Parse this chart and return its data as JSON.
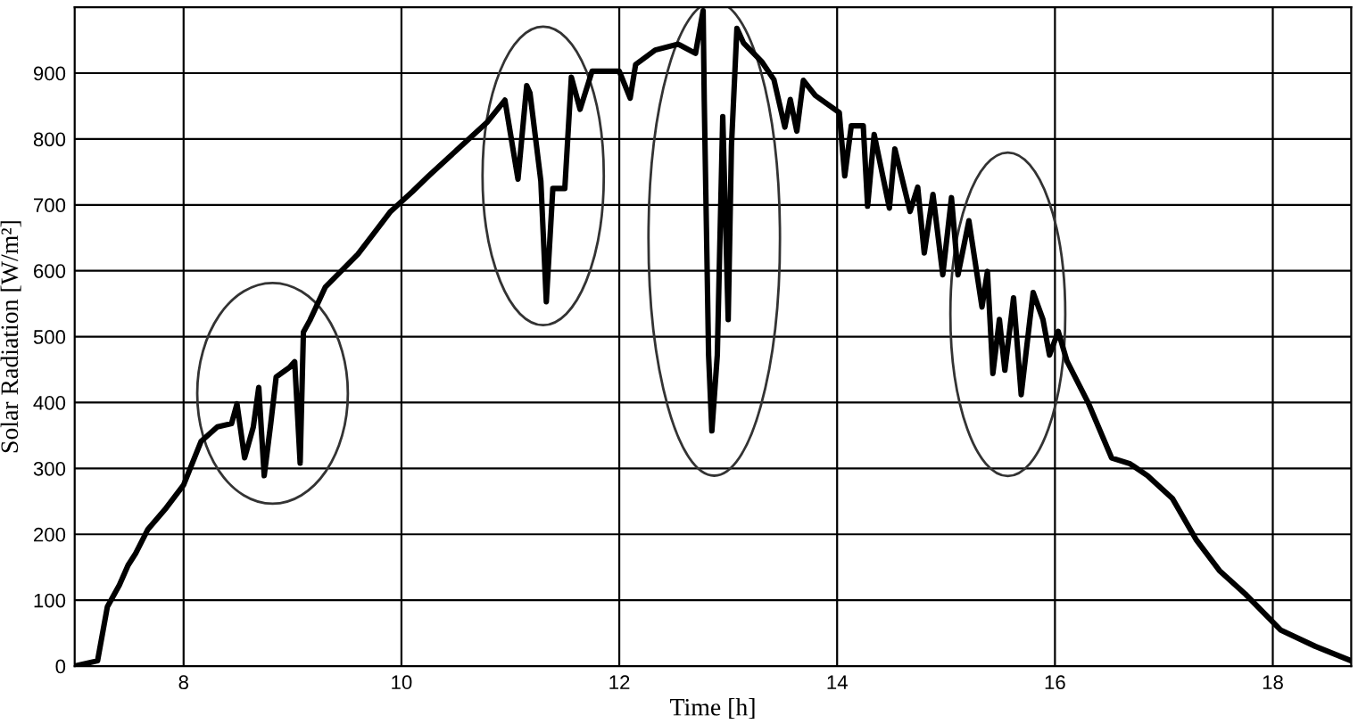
{
  "chart_data": {
    "type": "line",
    "xlabel": "Time [h]",
    "ylabel": "Solar Radiation [W/m²]",
    "xlim": [
      7,
      18.72
    ],
    "xticks": [
      8,
      10,
      12,
      14,
      16,
      18
    ],
    "ylim": [
      0,
      1000
    ],
    "yticks": [
      0,
      100,
      200,
      300,
      400,
      500,
      600,
      700,
      800,
      900
    ],
    "grid": true,
    "legend": false,
    "marker": "none",
    "line_style": "solid",
    "series": [
      {
        "color": "#000000",
        "x": [
          7.0,
          7.21,
          7.3,
          7.41,
          7.49,
          7.56,
          7.67,
          7.84,
          8.0,
          8.16,
          8.31,
          8.44,
          8.49,
          8.56,
          8.64,
          8.69,
          8.74,
          8.8,
          8.85,
          8.97,
          9.02,
          9.07,
          9.1,
          9.16,
          9.3,
          9.6,
          9.9,
          10.1,
          10.25,
          10.79,
          10.95,
          11.07,
          11.15,
          11.18,
          11.28,
          11.33,
          11.39,
          11.5,
          11.56,
          11.64,
          11.75,
          12.0,
          12.1,
          12.15,
          12.33,
          12.54,
          12.7,
          12.77,
          12.78,
          12.82,
          12.85,
          12.9,
          12.95,
          13.0,
          13.03,
          13.08,
          13.14,
          13.31,
          13.42,
          13.52,
          13.57,
          13.63,
          13.69,
          13.8,
          14.02,
          14.07,
          14.13,
          14.24,
          14.28,
          14.34,
          14.48,
          14.53,
          14.67,
          14.74,
          14.8,
          14.88,
          14.97,
          15.05,
          15.11,
          15.21,
          15.33,
          15.38,
          15.43,
          15.49,
          15.54,
          15.62,
          15.69,
          15.77,
          15.8,
          15.89,
          15.95,
          16.03,
          16.11,
          16.31,
          16.52,
          16.69,
          16.85,
          17.08,
          17.3,
          17.51,
          17.75,
          18.07,
          18.39,
          18.72
        ],
        "values": [
          0,
          8,
          90,
          123,
          153,
          171,
          207,
          240,
          275,
          341,
          363,
          368,
          398,
          316,
          363,
          423,
          289,
          368,
          439,
          453,
          462,
          308,
          507,
          525,
          575,
          625,
          690,
          720,
          744,
          826,
          859,
          739,
          881,
          870,
          736,
          553,
          725,
          725,
          894,
          845,
          903,
          903,
          862,
          913,
          935,
          944,
          930,
          995,
          860,
          472,
          357,
          472,
          834,
          526,
          790,
          968,
          946,
          917,
          890,
          818,
          860,
          812,
          889,
          866,
          840,
          744,
          820,
          820,
          698,
          807,
          695,
          785,
          690,
          727,
          627,
          716,
          594,
          711,
          594,
          676,
          545,
          599,
          444,
          526,
          449,
          559,
          412,
          526,
          567,
          526,
          472,
          508,
          463,
          398,
          316,
          307,
          289,
          254,
          191,
          145,
          109,
          55,
          30,
          8
        ]
      }
    ]
  }
}
